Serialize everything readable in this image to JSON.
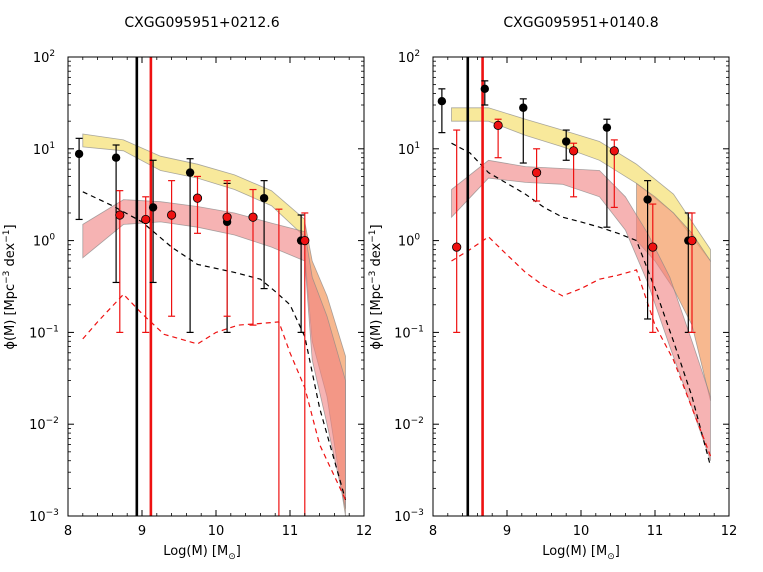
{
  "chart_data": [
    {
      "type": "line",
      "title": "CXGG095951+0212.6",
      "xlabel_base": "Log(M) [M",
      "xlabel_sub": "⊙",
      "xlabel_end": "]",
      "ylabel_a": "ϕ(M) [Mpc",
      "ylabel_sup": "−3",
      "ylabel_b": " dex",
      "ylabel_sup2": "−1",
      "ylabel_c": "]",
      "xlim": [
        8,
        12
      ],
      "ylim_log10": [
        -3,
        2
      ],
      "xticks": [
        8,
        9,
        10,
        11,
        12
      ],
      "yticks_exp": [
        -3,
        -2,
        -1,
        0,
        1,
        2
      ],
      "ytick_base": "10",
      "vlines": [
        {
          "x": 8.93,
          "color": "#000000"
        },
        {
          "x": 9.12,
          "color": "#ee1111"
        }
      ],
      "bands": [
        {
          "name": "yellow band",
          "color": "#f5e27a",
          "x": [
            8.2,
            8.75,
            9.25,
            9.75,
            10.25,
            10.75,
            11.2
          ],
          "lower": [
            10.5,
            9.5,
            5.8,
            4.8,
            3.6,
            2.4,
            1.1
          ],
          "upper": [
            14.5,
            12.5,
            8.3,
            6.8,
            5.2,
            3.5,
            1.7
          ]
        },
        {
          "name": "orange band",
          "color": "#f4a06a",
          "x": [
            11.2,
            11.3,
            11.5,
            11.75
          ],
          "lower": [
            0.7,
            0.08,
            0.02,
            0.001
          ],
          "upper": [
            1.6,
            0.6,
            0.25,
            0.055
          ]
        },
        {
          "name": "red band",
          "color": "#f08080",
          "x": [
            8.2,
            8.75,
            9.25,
            9.75,
            10.25,
            10.75,
            11.2,
            11.3,
            11.5,
            11.75
          ],
          "lower": [
            0.65,
            1.5,
            1.6,
            1.4,
            1.15,
            0.85,
            0.6,
            0.05,
            0.01,
            0.0012
          ],
          "upper": [
            1.5,
            2.8,
            2.65,
            2.35,
            2.0,
            1.55,
            1.25,
            0.4,
            0.15,
            0.03
          ]
        }
      ],
      "dashed_lines": [
        {
          "name": "black dashed",
          "color": "#000000",
          "x": [
            8.2,
            8.6,
            9.0,
            9.4,
            9.75,
            10.25,
            10.6,
            10.8,
            11.0,
            11.2,
            11.4,
            11.75
          ],
          "y": [
            3.4,
            2.4,
            1.6,
            0.85,
            0.55,
            0.45,
            0.38,
            0.28,
            0.2,
            0.09,
            0.015,
            0.0015
          ]
        },
        {
          "name": "red dashed",
          "color": "#ee1111",
          "x": [
            8.2,
            8.4,
            8.75,
            9.0,
            9.3,
            9.75,
            10.0,
            10.3,
            10.6,
            10.85,
            11.0,
            11.2,
            11.4,
            11.75
          ],
          "y": [
            0.085,
            0.13,
            0.26,
            0.16,
            0.095,
            0.075,
            0.1,
            0.12,
            0.125,
            0.13,
            0.06,
            0.025,
            0.006,
            0.0015
          ]
        }
      ],
      "black_points": [
        {
          "x": 8.15,
          "y": 8.8,
          "lo": 1.7,
          "hi": 13.0
        },
        {
          "x": 8.65,
          "y": 8.0,
          "lo": 0.35,
          "hi": 11.0
        },
        {
          "x": 9.15,
          "y": 2.3,
          "lo": 0.35,
          "hi": 7.5
        },
        {
          "x": 9.65,
          "y": 5.5,
          "lo": 0.1,
          "hi": 7.8
        },
        {
          "x": 10.15,
          "y": 1.6,
          "lo": 0.1,
          "hi": 4.2
        },
        {
          "x": 10.65,
          "y": 2.9,
          "lo": 0.3,
          "hi": 4.5
        },
        {
          "x": 11.15,
          "y": 1.0,
          "lo": 0.1,
          "hi": 1.9
        }
      ],
      "red_points": [
        {
          "x": 8.7,
          "y": 1.9,
          "lo": 0.1,
          "hi": 3.5
        },
        {
          "x": 9.05,
          "y": 1.7,
          "lo": 0.1,
          "hi": 3.0
        },
        {
          "x": 9.4,
          "y": 1.9,
          "lo": 0.15,
          "hi": 4.5
        },
        {
          "x": 9.75,
          "y": 2.9,
          "lo": 1.2,
          "hi": 5.0
        },
        {
          "x": 10.15,
          "y": 1.8,
          "lo": 0.15,
          "hi": 4.5
        },
        {
          "x": 10.5,
          "y": 1.8,
          "lo": 0.12,
          "hi": 3.6
        },
        {
          "x": 11.2,
          "y": 1.0,
          "lo": 0.001,
          "hi": 2.0
        }
      ],
      "red_extra_errorbars": [
        {
          "x": 10.85,
          "lo": 0.001,
          "hi": 2.2
        }
      ]
    },
    {
      "type": "line",
      "title": "CXGG095951+0140.8",
      "xlabel_base": "Log(M) [M",
      "xlabel_sub": "⊙",
      "xlabel_end": "]",
      "ylabel_a": "ϕ(M) [Mpc",
      "ylabel_sup": "−3",
      "ylabel_b": " dex",
      "ylabel_sup2": "−1",
      "ylabel_c": "]",
      "xlim": [
        8,
        12
      ],
      "ylim_log10": [
        -3,
        2
      ],
      "xticks": [
        8,
        9,
        10,
        11,
        12
      ],
      "yticks_exp": [
        -3,
        -2,
        -1,
        0,
        1,
        2
      ],
      "ytick_base": "10",
      "vlines": [
        {
          "x": 8.47,
          "color": "#000000"
        },
        {
          "x": 8.67,
          "color": "#ee1111"
        }
      ],
      "bands": [
        {
          "name": "yellow band",
          "color": "#f5e27a",
          "x": [
            8.25,
            8.75,
            9.25,
            9.75,
            10.25,
            10.75,
            11.25,
            11.75
          ],
          "lower": [
            20.0,
            20.0,
            14.0,
            10.5,
            7.5,
            4.2,
            2.0,
            0.6
          ],
          "upper": [
            28.0,
            28.0,
            21.0,
            16.0,
            12.0,
            6.8,
            3.2,
            0.8
          ]
        },
        {
          "name": "orange band",
          "color": "#f4a06a",
          "x": [
            10.75,
            11.0,
            11.25,
            11.5,
            11.75
          ],
          "lower": [
            1.0,
            0.6,
            0.3,
            0.12,
            0.018
          ],
          "upper": [
            4.2,
            3.0,
            2.0,
            1.2,
            0.6
          ]
        },
        {
          "name": "red band",
          "color": "#f08080",
          "x": [
            8.25,
            8.75,
            9.25,
            9.75,
            10.25,
            10.6,
            10.9,
            11.2,
            11.5,
            11.75
          ],
          "lower": [
            1.8,
            4.8,
            4.3,
            4.1,
            3.0,
            1.3,
            0.35,
            0.07,
            0.015,
            0.004
          ],
          "upper": [
            3.6,
            7.5,
            6.4,
            6.1,
            5.8,
            3.0,
            1.2,
            0.4,
            0.08,
            0.02
          ]
        }
      ],
      "dashed_lines": [
        {
          "name": "black dashed",
          "color": "#000000",
          "x": [
            8.25,
            8.5,
            8.75,
            9.0,
            9.25,
            9.5,
            9.75,
            10.0,
            10.25,
            10.5,
            10.75,
            11.0,
            11.25,
            11.5,
            11.75
          ],
          "y": [
            11.5,
            9.0,
            5.5,
            4.2,
            3.2,
            2.3,
            1.8,
            1.6,
            1.4,
            1.2,
            1.0,
            0.3,
            0.08,
            0.02,
            0.0035
          ]
        },
        {
          "name": "red dashed",
          "color": "#ee1111",
          "x": [
            8.25,
            8.5,
            8.75,
            9.0,
            9.25,
            9.5,
            9.75,
            10.0,
            10.25,
            10.5,
            10.75,
            11.0,
            11.25,
            11.5,
            11.75
          ],
          "y": [
            0.6,
            0.8,
            1.1,
            0.7,
            0.45,
            0.32,
            0.25,
            0.3,
            0.38,
            0.42,
            0.48,
            0.12,
            0.05,
            0.015,
            0.0045
          ]
        }
      ],
      "black_points": [
        {
          "x": 8.12,
          "y": 33.0,
          "lo": 15.0,
          "hi": 45.0
        },
        {
          "x": 8.7,
          "y": 45.0,
          "lo": 30.0,
          "hi": 55.0
        },
        {
          "x": 9.22,
          "y": 28.0,
          "lo": 7.0,
          "hi": 35.0
        },
        {
          "x": 9.8,
          "y": 12.0,
          "lo": 7.5,
          "hi": 16.0
        },
        {
          "x": 10.35,
          "y": 17.0,
          "lo": 1.4,
          "hi": 21.0
        },
        {
          "x": 10.9,
          "y": 2.8,
          "lo": 0.14,
          "hi": 4.5
        },
        {
          "x": 11.45,
          "y": 1.0,
          "lo": 0.1,
          "hi": 2.0
        }
      ],
      "red_points": [
        {
          "x": 8.32,
          "y": 0.85,
          "lo": 0.1,
          "hi": 16.0
        },
        {
          "x": 8.88,
          "y": 18.0,
          "lo": 8.0,
          "hi": 21.0
        },
        {
          "x": 9.4,
          "y": 5.5,
          "lo": 2.7,
          "hi": 10.0
        },
        {
          "x": 9.9,
          "y": 9.5,
          "lo": 3.0,
          "hi": 11.5
        },
        {
          "x": 10.45,
          "y": 9.5,
          "lo": 2.3,
          "hi": 12.5
        },
        {
          "x": 10.97,
          "y": 0.85,
          "lo": 0.1,
          "hi": 2.5
        },
        {
          "x": 11.5,
          "y": 1.0,
          "lo": 0.1,
          "hi": 2.0
        }
      ],
      "red_extra_errorbars": []
    }
  ],
  "colors": {
    "black": "#000000",
    "red_marker": "#ee1111",
    "marker_edge": "#000000"
  }
}
